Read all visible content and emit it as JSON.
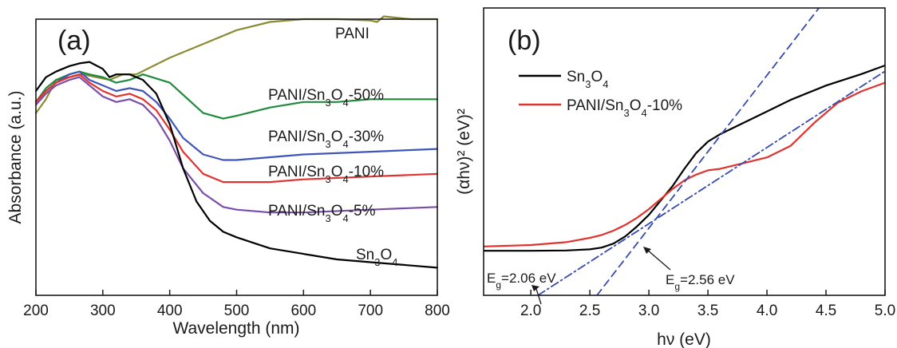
{
  "chart_data": [
    {
      "panel_label": "(a)",
      "type": "line",
      "xlabel": "Wavelength (nm)",
      "ylabel": "Absorbance (a.u.)",
      "xlim": [
        200,
        800
      ],
      "ylim": [
        0,
        1
      ],
      "x_ticks": [
        "200",
        "300",
        "400",
        "500",
        "600",
        "700",
        "800"
      ],
      "y_ticks_shown": false,
      "grid": false,
      "legend": "labels placed next to curves",
      "series": [
        {
          "name": "PANI",
          "label_parts": [
            "PANI"
          ],
          "color": "#8b8b33",
          "x": [
            200,
            215,
            230,
            250,
            270,
            290,
            310,
            330,
            350,
            400,
            450,
            500,
            550,
            600,
            650,
            700,
            710,
            720,
            760,
            800
          ],
          "y": [
            0.66,
            0.71,
            0.78,
            0.79,
            0.8,
            0.79,
            0.78,
            0.8,
            0.8,
            0.86,
            0.91,
            0.96,
            0.99,
            1.0,
            1.0,
            0.995,
            0.99,
            1.01,
            1.0,
            1.0
          ]
        },
        {
          "name": "PANI/Sn3O4-50%",
          "label_parts": [
            "PANI/Sn",
            "3",
            "O",
            "4",
            "-50%"
          ],
          "color": "#1e8a3a",
          "x": [
            200,
            215,
            230,
            250,
            265,
            280,
            300,
            320,
            340,
            360,
            400,
            450,
            480,
            500,
            550,
            600,
            650,
            700,
            800
          ],
          "y": [
            0.7,
            0.75,
            0.78,
            0.8,
            0.81,
            0.8,
            0.79,
            0.77,
            0.78,
            0.8,
            0.77,
            0.66,
            0.64,
            0.65,
            0.68,
            0.7,
            0.7,
            0.71,
            0.71
          ]
        },
        {
          "name": "PANI/Sn3O4-30%",
          "label_parts": [
            "PANI/Sn",
            "3",
            "O",
            "4",
            "-30%"
          ],
          "color": "#3f55b8",
          "x": [
            200,
            215,
            230,
            250,
            265,
            280,
            300,
            320,
            340,
            360,
            380,
            400,
            420,
            450,
            480,
            500,
            550,
            600,
            700,
            800
          ],
          "y": [
            0.7,
            0.74,
            0.77,
            0.8,
            0.81,
            0.78,
            0.76,
            0.74,
            0.75,
            0.74,
            0.7,
            0.64,
            0.57,
            0.51,
            0.49,
            0.49,
            0.5,
            0.51,
            0.52,
            0.53
          ]
        },
        {
          "name": "PANI/Sn3O4-10%",
          "label_parts": [
            "PANI/Sn",
            "3",
            "O",
            "4",
            "-10%"
          ],
          "color": "#e0322e",
          "x": [
            200,
            215,
            230,
            250,
            265,
            280,
            300,
            320,
            340,
            360,
            380,
            400,
            420,
            450,
            480,
            500,
            550,
            600,
            700,
            800
          ],
          "y": [
            0.7,
            0.74,
            0.77,
            0.79,
            0.8,
            0.77,
            0.74,
            0.72,
            0.73,
            0.71,
            0.67,
            0.6,
            0.52,
            0.44,
            0.41,
            0.41,
            0.41,
            0.42,
            0.43,
            0.44
          ]
        },
        {
          "name": "PANI/Sn3O4-5%",
          "label_parts": [
            "PANI/Sn",
            "3",
            "O",
            "4",
            "-5%"
          ],
          "color": "#7a4da8",
          "x": [
            200,
            215,
            230,
            250,
            265,
            280,
            300,
            320,
            340,
            360,
            380,
            400,
            420,
            450,
            480,
            500,
            550,
            600,
            700,
            800
          ],
          "y": [
            0.69,
            0.73,
            0.76,
            0.78,
            0.79,
            0.76,
            0.72,
            0.7,
            0.71,
            0.69,
            0.64,
            0.56,
            0.46,
            0.37,
            0.32,
            0.31,
            0.3,
            0.3,
            0.31,
            0.32
          ]
        },
        {
          "name": "Sn3O4",
          "label_parts": [
            "Sn",
            "3",
            "O",
            "4"
          ],
          "color": "#000000",
          "x": [
            200,
            215,
            230,
            250,
            265,
            280,
            300,
            310,
            320,
            340,
            360,
            380,
            400,
            420,
            440,
            460,
            480,
            500,
            550,
            600,
            650,
            700,
            750,
            800
          ],
          "y": [
            0.74,
            0.79,
            0.81,
            0.83,
            0.84,
            0.845,
            0.82,
            0.79,
            0.8,
            0.8,
            0.78,
            0.73,
            0.62,
            0.46,
            0.34,
            0.27,
            0.23,
            0.21,
            0.17,
            0.15,
            0.13,
            0.12,
            0.11,
            0.1
          ]
        }
      ]
    },
    {
      "panel_label": "(b)",
      "type": "line",
      "xlabel": "hν (eV)",
      "ylabel": "(αhν)² (eV)²",
      "xlim": [
        1.6,
        5.0
      ],
      "ylim": [
        0,
        1
      ],
      "x_ticks": [
        "2.0",
        "2.5",
        "3.0",
        "3.5",
        "4.0",
        "4.5",
        "5.0"
      ],
      "y_ticks_shown": false,
      "grid": false,
      "legend": "top-left",
      "series": [
        {
          "name": "Sn3O4",
          "label_parts": [
            "Sn",
            "3",
            "O",
            "4"
          ],
          "color": "#000000",
          "x": [
            1.6,
            2.0,
            2.3,
            2.5,
            2.6,
            2.7,
            2.8,
            2.9,
            3.0,
            3.1,
            3.2,
            3.3,
            3.4,
            3.5,
            3.6,
            3.8,
            4.0,
            4.2,
            4.5,
            4.8,
            5.0
          ],
          "y": [
            0.155,
            0.155,
            0.156,
            0.16,
            0.166,
            0.18,
            0.205,
            0.24,
            0.28,
            0.33,
            0.38,
            0.44,
            0.495,
            0.535,
            0.56,
            0.6,
            0.64,
            0.68,
            0.73,
            0.77,
            0.8
          ]
        },
        {
          "name": "PANI/Sn3O4-10%",
          "label_parts": [
            "PANI/Sn",
            "3",
            "O",
            "4",
            "-10%"
          ],
          "color": "#e0322e",
          "x": [
            1.6,
            2.0,
            2.3,
            2.5,
            2.6,
            2.7,
            2.8,
            2.9,
            3.0,
            3.1,
            3.2,
            3.3,
            3.4,
            3.5,
            3.6,
            3.8,
            4.0,
            4.2,
            4.4,
            4.6,
            4.8,
            5.0
          ],
          "y": [
            0.17,
            0.175,
            0.185,
            0.2,
            0.21,
            0.225,
            0.245,
            0.27,
            0.3,
            0.335,
            0.37,
            0.4,
            0.42,
            0.435,
            0.44,
            0.46,
            0.48,
            0.52,
            0.6,
            0.67,
            0.71,
            0.74
          ]
        },
        {
          "name": "tangent 2.56 eV",
          "style": "dashed",
          "color": "#3549b0",
          "x": [
            2.56,
            4.44
          ],
          "y": [
            0.0,
            1.0
          ]
        },
        {
          "name": "tangent 2.06 eV",
          "style": "dash-dot",
          "color": "#3549b0",
          "x": [
            2.06,
            5.0
          ],
          "y": [
            0.0,
            0.78
          ]
        }
      ],
      "annotations": [
        {
          "text_parts": [
            "E",
            "g",
            "=2.56 eV"
          ],
          "x": 2.56
        },
        {
          "text_parts": [
            "E",
            "g",
            "=2.06 eV"
          ],
          "x": 2.06
        }
      ]
    }
  ]
}
